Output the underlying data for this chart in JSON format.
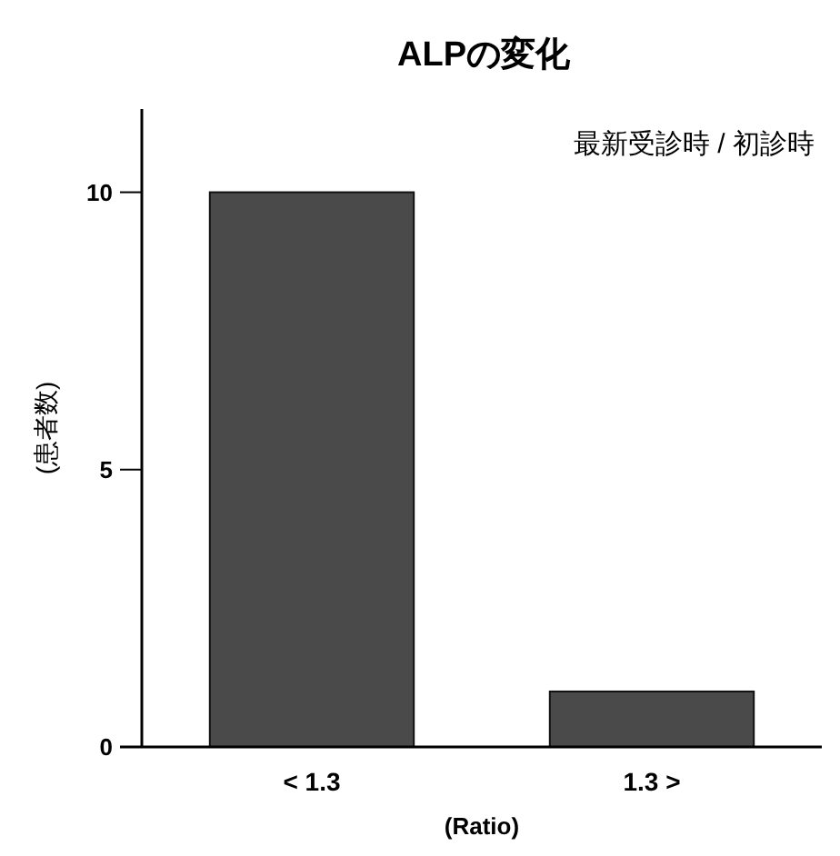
{
  "chart_data": {
    "type": "bar",
    "title": "ALPの変化",
    "xlabel": "(Ratio)",
    "ylabel": "(患者数)",
    "categories": [
      "< 1.3",
      "1.3 >"
    ],
    "values": [
      10,
      1
    ],
    "color": "#4a4a4a",
    "ylim": [
      0,
      11.5
    ],
    "yticks": [
      0,
      5,
      10
    ],
    "annotations": [
      "最新受診時 / 初診時"
    ]
  }
}
